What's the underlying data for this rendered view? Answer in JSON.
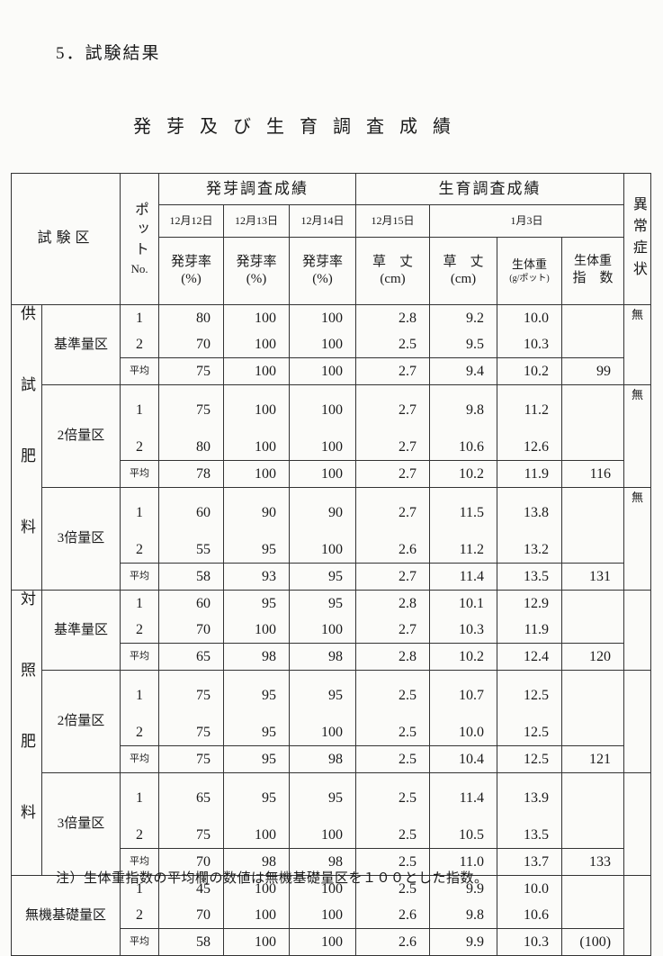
{
  "heading": "5．試験結果",
  "table_title": "発芽及び生育調査成績",
  "header": {
    "plot": "試験区",
    "pot": "ポット",
    "pot_no": "No.",
    "germination": "発芽調査成績",
    "growth": "生育調査成績",
    "dates": [
      "12月12日",
      "12月13日",
      "12月14日",
      "12月15日",
      "1月3日"
    ],
    "germ_rate": "発芽率",
    "percent": "(%)",
    "height": "草　丈",
    "cm": "(cm)",
    "weight": "生体重",
    "weight_unit": "(g/ポット)",
    "weight_index_1": "生体重",
    "weight_index_2": "指　数",
    "abnormal": "異常症状"
  },
  "avg_label": "平均",
  "categories": [
    {
      "name": "供試肥料",
      "groups": [
        {
          "name": "基準量区",
          "abnormal": "無",
          "rows": [
            [
              "1",
              "80",
              "100",
              "100",
              "2.8",
              "9.2",
              "10.0",
              ""
            ],
            [
              "2",
              "70",
              "100",
              "100",
              "2.5",
              "9.5",
              "10.3",
              ""
            ]
          ],
          "avg": [
            "75",
            "100",
            "100",
            "2.7",
            "9.4",
            "10.2",
            "99"
          ]
        },
        {
          "name": "2倍量区",
          "abnormal": "無",
          "rows": [
            [
              "1",
              "75",
              "100",
              "100",
              "2.7",
              "9.8",
              "11.2",
              ""
            ],
            [
              "2",
              "80",
              "100",
              "100",
              "2.7",
              "10.6",
              "12.6",
              ""
            ]
          ],
          "avg": [
            "78",
            "100",
            "100",
            "2.7",
            "10.2",
            "11.9",
            "116"
          ]
        },
        {
          "name": "3倍量区",
          "abnormal": "無",
          "rows": [
            [
              "1",
              "60",
              "90",
              "90",
              "2.7",
              "11.5",
              "13.8",
              ""
            ],
            [
              "2",
              "55",
              "95",
              "100",
              "2.6",
              "11.2",
              "13.2",
              ""
            ]
          ],
          "avg": [
            "58",
            "93",
            "95",
            "2.7",
            "11.4",
            "13.5",
            "131"
          ]
        }
      ]
    },
    {
      "name": "対照肥料",
      "groups": [
        {
          "name": "基準量区",
          "abnormal": "",
          "rows": [
            [
              "1",
              "60",
              "95",
              "95",
              "2.8",
              "10.1",
              "12.9",
              ""
            ],
            [
              "2",
              "70",
              "100",
              "100",
              "2.7",
              "10.3",
              "11.9",
              ""
            ]
          ],
          "avg": [
            "65",
            "98",
            "98",
            "2.8",
            "10.2",
            "12.4",
            "120"
          ]
        },
        {
          "name": "2倍量区",
          "abnormal": "",
          "rows": [
            [
              "1",
              "75",
              "95",
              "95",
              "2.5",
              "10.7",
              "12.5",
              ""
            ],
            [
              "2",
              "75",
              "95",
              "100",
              "2.5",
              "10.0",
              "12.5",
              ""
            ]
          ],
          "avg": [
            "75",
            "95",
            "98",
            "2.5",
            "10.4",
            "12.5",
            "121"
          ]
        },
        {
          "name": "3倍量区",
          "abnormal": "",
          "rows": [
            [
              "1",
              "65",
              "95",
              "95",
              "2.5",
              "11.4",
              "13.9",
              ""
            ],
            [
              "2",
              "75",
              "100",
              "100",
              "2.5",
              "10.5",
              "13.5",
              ""
            ]
          ],
          "avg": [
            "70",
            "98",
            "98",
            "2.5",
            "11.0",
            "13.7",
            "133"
          ]
        }
      ]
    }
  ],
  "control": {
    "name": "無機基礎量区",
    "abnormal": "",
    "rows": [
      [
        "1",
        "45",
        "100",
        "100",
        "2.5",
        "9.9",
        "10.0",
        ""
      ],
      [
        "2",
        "70",
        "100",
        "100",
        "2.6",
        "9.8",
        "10.6",
        ""
      ]
    ],
    "avg": [
      "58",
      "100",
      "100",
      "2.6",
      "9.9",
      "10.3",
      "(100)"
    ]
  },
  "note": "注）生体重指数の平均欄の数値は無機基礎量区を１００とした指数。"
}
